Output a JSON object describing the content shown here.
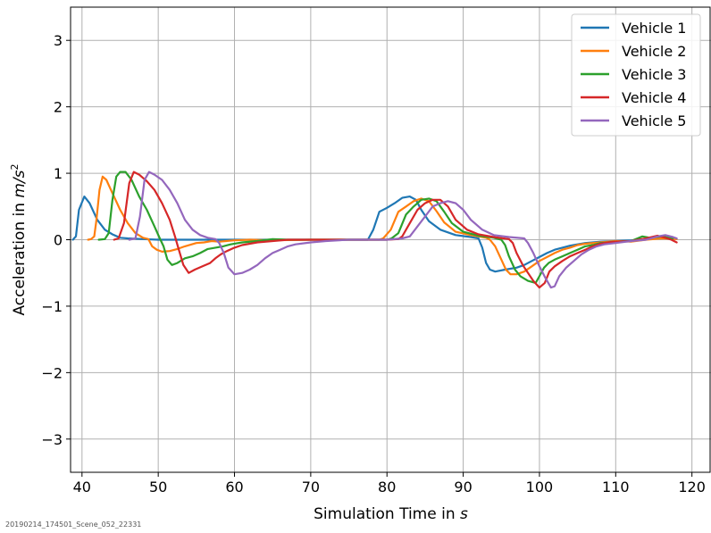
{
  "footer_text": "20190214_174501_Scene_052_22331",
  "chart_data": {
    "type": "line",
    "title": "",
    "xlabel": "Simulation Time in s",
    "xlabel_prefix": "Simulation Time in ",
    "xlabel_unit": "s",
    "ylabel": "Acceleration in m/s²",
    "ylabel_prefix": "Acceleration in ",
    "ylabel_unit": "m/s",
    "ylabel_exp": "2",
    "xlim": [
      38.5,
      122.5
    ],
    "ylim": [
      -3.5,
      3.5
    ],
    "xticks": [
      40,
      50,
      60,
      70,
      80,
      90,
      100,
      110,
      120
    ],
    "xtick_labels": [
      "40",
      "50",
      "60",
      "70",
      "80",
      "90",
      "100",
      "110",
      "120"
    ],
    "yticks": [
      -3,
      -2,
      -1,
      0,
      1,
      2,
      3
    ],
    "ytick_labels": [
      "−3",
      "−2",
      "−1",
      "0",
      "1",
      "2",
      "3"
    ],
    "grid": true,
    "legend_position": "top-right",
    "series": [
      {
        "name": "Vehicle 1",
        "color": "#1f77b4",
        "points": [
          [
            38.8,
            0
          ],
          [
            39.2,
            0.05
          ],
          [
            39.6,
            0.45
          ],
          [
            40.3,
            0.65
          ],
          [
            41,
            0.55
          ],
          [
            42,
            0.3
          ],
          [
            43,
            0.15
          ],
          [
            44,
            0.08
          ],
          [
            45,
            0.03
          ],
          [
            46,
            0.02
          ],
          [
            48,
            0.01
          ],
          [
            50,
            0
          ],
          [
            55,
            0
          ],
          [
            60,
            0
          ],
          [
            65,
            0
          ],
          [
            70,
            0
          ],
          [
            75,
            0
          ],
          [
            77.5,
            0
          ],
          [
            78.2,
            0.15
          ],
          [
            79,
            0.42
          ],
          [
            80,
            0.48
          ],
          [
            81,
            0.55
          ],
          [
            82,
            0.63
          ],
          [
            83,
            0.65
          ],
          [
            83.8,
            0.6
          ],
          [
            84.5,
            0.45
          ],
          [
            85.5,
            0.28
          ],
          [
            87,
            0.15
          ],
          [
            89,
            0.07
          ],
          [
            91,
            0.04
          ],
          [
            92,
            0.02
          ],
          [
            92.5,
            -0.12
          ],
          [
            93,
            -0.35
          ],
          [
            93.5,
            -0.45
          ],
          [
            94.2,
            -0.48
          ],
          [
            95.5,
            -0.45
          ],
          [
            97,
            -0.42
          ],
          [
            98,
            -0.38
          ],
          [
            99,
            -0.32
          ],
          [
            100,
            -0.26
          ],
          [
            101,
            -0.2
          ],
          [
            102,
            -0.15
          ],
          [
            103,
            -0.12
          ],
          [
            104,
            -0.09
          ],
          [
            105,
            -0.07
          ],
          [
            106,
            -0.05
          ],
          [
            108,
            -0.03
          ],
          [
            110,
            -0.02
          ],
          [
            112,
            -0.01
          ],
          [
            114,
            0.01
          ],
          [
            116,
            0.02
          ],
          [
            117.5,
            0.02
          ]
        ]
      },
      {
        "name": "Vehicle 2",
        "color": "#ff7f0e",
        "points": [
          [
            40.8,
            0
          ],
          [
            41.2,
            0.01
          ],
          [
            41.6,
            0.05
          ],
          [
            41.9,
            0.3
          ],
          [
            42.3,
            0.75
          ],
          [
            42.7,
            0.95
          ],
          [
            43.2,
            0.9
          ],
          [
            44,
            0.7
          ],
          [
            45,
            0.45
          ],
          [
            46,
            0.25
          ],
          [
            47,
            0.1
          ],
          [
            48,
            0.03
          ],
          [
            48.7,
            0.01
          ],
          [
            49.2,
            -0.1
          ],
          [
            49.8,
            -0.15
          ],
          [
            50.5,
            -0.18
          ],
          [
            51.5,
            -0.17
          ],
          [
            52.5,
            -0.14
          ],
          [
            53.5,
            -0.1
          ],
          [
            55,
            -0.05
          ],
          [
            56,
            -0.04
          ],
          [
            57,
            -0.02
          ],
          [
            58,
            -0.03
          ],
          [
            60,
            -0.01
          ],
          [
            62,
            0
          ],
          [
            65,
            -0.01
          ],
          [
            70,
            0
          ],
          [
            75,
            0
          ],
          [
            79,
            0
          ],
          [
            79.5,
            0.02
          ],
          [
            80.5,
            0.15
          ],
          [
            81.5,
            0.42
          ],
          [
            82.5,
            0.5
          ],
          [
            83.5,
            0.58
          ],
          [
            84.5,
            0.62
          ],
          [
            85.5,
            0.58
          ],
          [
            86.5,
            0.43
          ],
          [
            87.5,
            0.26
          ],
          [
            89,
            0.12
          ],
          [
            91,
            0.07
          ],
          [
            93,
            0.03
          ],
          [
            93.5,
            0
          ],
          [
            94.2,
            -0.1
          ],
          [
            95,
            -0.3
          ],
          [
            95.6,
            -0.45
          ],
          [
            96.2,
            -0.52
          ],
          [
            97,
            -0.52
          ],
          [
            98,
            -0.48
          ],
          [
            99,
            -0.4
          ],
          [
            100,
            -0.32
          ],
          [
            101,
            -0.26
          ],
          [
            102,
            -0.2
          ],
          [
            103,
            -0.15
          ],
          [
            104,
            -0.12
          ],
          [
            105,
            -0.08
          ],
          [
            106,
            -0.06
          ],
          [
            108,
            -0.04
          ],
          [
            110,
            -0.02
          ],
          [
            112,
            -0.03
          ],
          [
            114,
            0
          ],
          [
            116,
            0.02
          ],
          [
            118,
            0.01
          ]
        ]
      },
      {
        "name": "Vehicle 3",
        "color": "#2ca02c",
        "points": [
          [
            42.2,
            0
          ],
          [
            43,
            0.01
          ],
          [
            43.5,
            0.1
          ],
          [
            44,
            0.6
          ],
          [
            44.5,
            0.95
          ],
          [
            45,
            1.02
          ],
          [
            45.7,
            1.02
          ],
          [
            46.5,
            0.9
          ],
          [
            47.5,
            0.65
          ],
          [
            48.5,
            0.45
          ],
          [
            49.5,
            0.2
          ],
          [
            50.2,
            0.02
          ],
          [
            50.7,
            -0.1
          ],
          [
            51.2,
            -0.3
          ],
          [
            51.8,
            -0.38
          ],
          [
            52.5,
            -0.35
          ],
          [
            53.5,
            -0.28
          ],
          [
            54.5,
            -0.25
          ],
          [
            55.5,
            -0.2
          ],
          [
            56.5,
            -0.14
          ],
          [
            57.5,
            -0.12
          ],
          [
            58.5,
            -0.1
          ],
          [
            59.5,
            -0.07
          ],
          [
            61,
            -0.04
          ],
          [
            63,
            -0.02
          ],
          [
            65,
            0.01
          ],
          [
            67,
            0
          ],
          [
            70,
            0
          ],
          [
            75,
            0
          ],
          [
            80,
            0
          ],
          [
            80.6,
            0.02
          ],
          [
            81.5,
            0.1
          ],
          [
            82.5,
            0.38
          ],
          [
            83.5,
            0.5
          ],
          [
            84.5,
            0.6
          ],
          [
            85.5,
            0.62
          ],
          [
            86.5,
            0.58
          ],
          [
            87.5,
            0.42
          ],
          [
            88.5,
            0.25
          ],
          [
            90,
            0.12
          ],
          [
            92,
            0.06
          ],
          [
            94,
            0.03
          ],
          [
            95,
            0
          ],
          [
            95.5,
            -0.08
          ],
          [
            96,
            -0.25
          ],
          [
            96.8,
            -0.45
          ],
          [
            97.5,
            -0.55
          ],
          [
            98.5,
            -0.62
          ],
          [
            99.5,
            -0.65
          ],
          [
            100,
            -0.55
          ],
          [
            100.6,
            -0.42
          ],
          [
            101.2,
            -0.35
          ],
          [
            102,
            -0.3
          ],
          [
            103,
            -0.25
          ],
          [
            104,
            -0.2
          ],
          [
            105,
            -0.15
          ],
          [
            106,
            -0.1
          ],
          [
            107,
            -0.08
          ],
          [
            108,
            -0.05
          ],
          [
            109,
            -0.04
          ],
          [
            110,
            -0.03
          ],
          [
            112,
            -0.02
          ],
          [
            113.5,
            0.05
          ],
          [
            114.5,
            0.03
          ],
          [
            116,
            0.05
          ],
          [
            117.5,
            0.02
          ]
        ]
      },
      {
        "name": "Vehicle 4",
        "color": "#d62728",
        "points": [
          [
            44.2,
            0
          ],
          [
            44.8,
            0.02
          ],
          [
            45.5,
            0.25
          ],
          [
            46.2,
            0.85
          ],
          [
            46.8,
            1.02
          ],
          [
            47.5,
            0.98
          ],
          [
            48.5,
            0.88
          ],
          [
            49.5,
            0.75
          ],
          [
            50.5,
            0.55
          ],
          [
            51.5,
            0.3
          ],
          [
            52.2,
            0.05
          ],
          [
            52.7,
            -0.15
          ],
          [
            53.3,
            -0.38
          ],
          [
            54,
            -0.5
          ],
          [
            54.8,
            -0.45
          ],
          [
            55.8,
            -0.4
          ],
          [
            56.8,
            -0.35
          ],
          [
            57.5,
            -0.28
          ],
          [
            58.2,
            -0.22
          ],
          [
            59,
            -0.17
          ],
          [
            60,
            -0.12
          ],
          [
            61,
            -0.08
          ],
          [
            63,
            -0.04
          ],
          [
            65,
            -0.02
          ],
          [
            67,
            0
          ],
          [
            70,
            0
          ],
          [
            75,
            0
          ],
          [
            80,
            0
          ],
          [
            81.5,
            0.01
          ],
          [
            82,
            0.05
          ],
          [
            83,
            0.25
          ],
          [
            84,
            0.45
          ],
          [
            85,
            0.55
          ],
          [
            86,
            0.6
          ],
          [
            87,
            0.6
          ],
          [
            88,
            0.5
          ],
          [
            89,
            0.3
          ],
          [
            90.5,
            0.15
          ],
          [
            92,
            0.08
          ],
          [
            94,
            0.04
          ],
          [
            96,
            0.01
          ],
          [
            96.5,
            -0.05
          ],
          [
            97,
            -0.2
          ],
          [
            97.8,
            -0.38
          ],
          [
            98.5,
            -0.5
          ],
          [
            99.2,
            -0.62
          ],
          [
            100,
            -0.72
          ],
          [
            100.7,
            -0.65
          ],
          [
            101.3,
            -0.48
          ],
          [
            102,
            -0.4
          ],
          [
            103,
            -0.32
          ],
          [
            104,
            -0.25
          ],
          [
            105,
            -0.2
          ],
          [
            106,
            -0.15
          ],
          [
            107,
            -0.1
          ],
          [
            108,
            -0.06
          ],
          [
            109,
            -0.04
          ],
          [
            110,
            -0.03
          ],
          [
            112,
            -0.02
          ],
          [
            114,
            0.02
          ],
          [
            115.5,
            0.06
          ],
          [
            116.5,
            0.03
          ],
          [
            117.3,
            0
          ],
          [
            118,
            -0.04
          ]
        ]
      },
      {
        "name": "Vehicle 5",
        "color": "#9467bd",
        "points": [
          [
            46.2,
            0
          ],
          [
            47,
            0.02
          ],
          [
            47.6,
            0.35
          ],
          [
            48.2,
            0.9
          ],
          [
            48.8,
            1.02
          ],
          [
            49.5,
            0.98
          ],
          [
            50.5,
            0.9
          ],
          [
            51.5,
            0.75
          ],
          [
            52.5,
            0.55
          ],
          [
            53.5,
            0.3
          ],
          [
            54.5,
            0.15
          ],
          [
            55.5,
            0.07
          ],
          [
            56.5,
            0.03
          ],
          [
            57.5,
            0.01
          ],
          [
            58,
            -0.05
          ],
          [
            58.6,
            -0.2
          ],
          [
            59.2,
            -0.42
          ],
          [
            60,
            -0.52
          ],
          [
            61,
            -0.5
          ],
          [
            62,
            -0.45
          ],
          [
            63,
            -0.38
          ],
          [
            64,
            -0.28
          ],
          [
            65,
            -0.2
          ],
          [
            66,
            -0.15
          ],
          [
            67,
            -0.1
          ],
          [
            68,
            -0.07
          ],
          [
            70,
            -0.04
          ],
          [
            72,
            -0.02
          ],
          [
            75,
            0
          ],
          [
            80,
            0
          ],
          [
            82,
            0.02
          ],
          [
            83,
            0.05
          ],
          [
            84,
            0.2
          ],
          [
            85,
            0.35
          ],
          [
            86,
            0.5
          ],
          [
            87,
            0.55
          ],
          [
            88,
            0.58
          ],
          [
            89,
            0.55
          ],
          [
            90,
            0.45
          ],
          [
            91,
            0.3
          ],
          [
            92.5,
            0.15
          ],
          [
            94,
            0.07
          ],
          [
            96,
            0.04
          ],
          [
            98,
            0.02
          ],
          [
            98.5,
            -0.05
          ],
          [
            99.2,
            -0.2
          ],
          [
            100,
            -0.4
          ],
          [
            100.8,
            -0.58
          ],
          [
            101.5,
            -0.72
          ],
          [
            102,
            -0.7
          ],
          [
            102.6,
            -0.55
          ],
          [
            103.5,
            -0.42
          ],
          [
            104.5,
            -0.32
          ],
          [
            105.5,
            -0.22
          ],
          [
            106.5,
            -0.15
          ],
          [
            107.5,
            -0.1
          ],
          [
            108.5,
            -0.07
          ],
          [
            110,
            -0.05
          ],
          [
            112,
            -0.02
          ],
          [
            114,
            0
          ],
          [
            115.5,
            0.05
          ],
          [
            116.5,
            0.07
          ],
          [
            117.5,
            0.04
          ],
          [
            118,
            0.02
          ]
        ]
      }
    ]
  }
}
